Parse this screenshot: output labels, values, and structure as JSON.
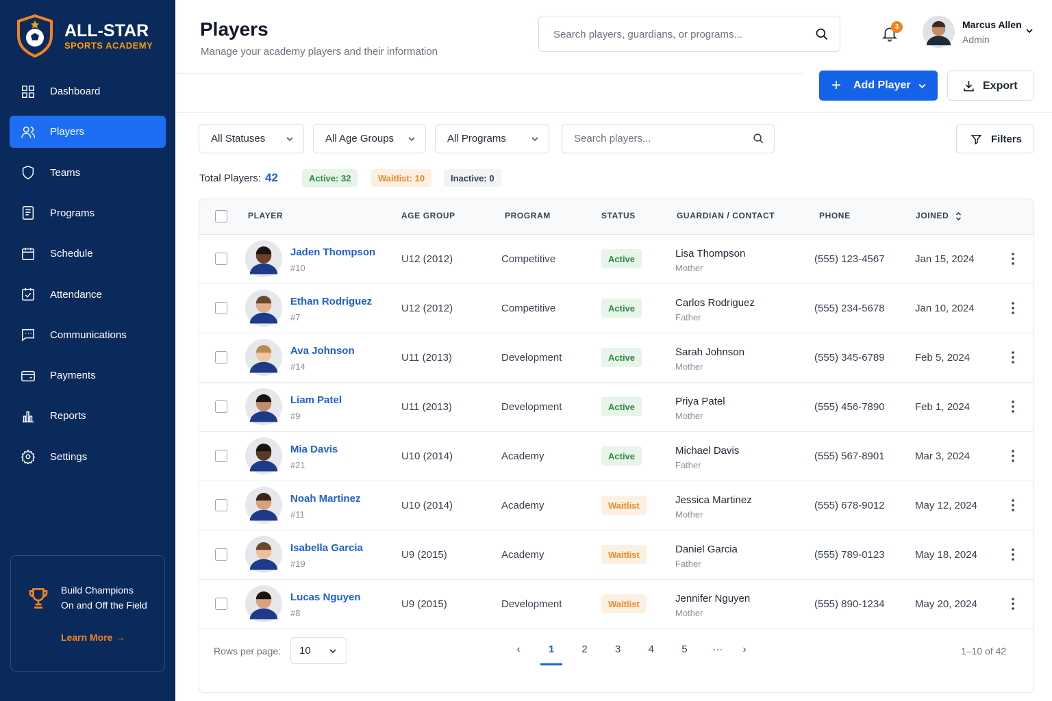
{
  "brand": {
    "name": "ALL-STAR",
    "tagline": "SPORTS ACADEMY"
  },
  "nav": [
    "Dashboard",
    "Players",
    "Teams",
    "Programs",
    "Schedule",
    "Attendance",
    "Communications",
    "Payments",
    "Reports",
    "Settings"
  ],
  "promo": {
    "line1": "Build Champions",
    "line2": "On and Off the Field",
    "link": "Learn More"
  },
  "header": {
    "title": "Players",
    "subtitle": "Manage your academy players and their information",
    "search_placeholder": "Search players, guardians, or programs...",
    "notifications": "3",
    "user_name": "Marcus Allen",
    "user_role": "Admin"
  },
  "actions": {
    "add": "Add Player",
    "export": "Export"
  },
  "filters": {
    "status": "All Statuses",
    "age": "All Age Groups",
    "program": "All Programs",
    "search_placeholder": "Search players...",
    "more": "Filters"
  },
  "summary": {
    "total_label": "Total Players:",
    "total": "42",
    "active": "Active: 32",
    "waitlist": "Waitlist: 10",
    "inactive": "Inactive: 0"
  },
  "table": {
    "columns": [
      "PLAYER",
      "AGE GROUP",
      "PROGRAM",
      "STATUS",
      "GUARDIAN / CONTACT",
      "PHONE",
      "JOINED"
    ],
    "rows": [
      {
        "name": "Jaden Thompson",
        "number": "#10",
        "age_group": "U12 (2012)",
        "program": "Competitive",
        "status": "Active",
        "guardian": "Lisa Thompson",
        "relation": "Mother",
        "phone": "(555) 123-4567",
        "joined": "Jan 15, 2024"
      },
      {
        "name": "Ethan Rodriguez",
        "number": "#7",
        "age_group": "U12 (2012)",
        "program": "Competitive",
        "status": "Active",
        "guardian": "Carlos Rodriguez",
        "relation": "Father",
        "phone": "(555) 234-5678",
        "joined": "Jan 10, 2024"
      },
      {
        "name": "Ava Johnson",
        "number": "#14",
        "age_group": "U11 (2013)",
        "program": "Development",
        "status": "Active",
        "guardian": "Sarah Johnson",
        "relation": "Mother",
        "phone": "(555) 345-6789",
        "joined": "Feb 5, 2024"
      },
      {
        "name": "Liam Patel",
        "number": "#9",
        "age_group": "U11 (2013)",
        "program": "Development",
        "status": "Active",
        "guardian": "Priya Patel",
        "relation": "Mother",
        "phone": "(555) 456-7890",
        "joined": "Feb 1, 2024"
      },
      {
        "name": "Mia Davis",
        "number": "#21",
        "age_group": "U10 (2014)",
        "program": "Academy",
        "status": "Active",
        "guardian": "Michael Davis",
        "relation": "Father",
        "phone": "(555) 567-8901",
        "joined": "Mar 3, 2024"
      },
      {
        "name": "Noah Martinez",
        "number": "#11",
        "age_group": "U10 (2014)",
        "program": "Academy",
        "status": "Waitlist",
        "guardian": "Jessica Martinez",
        "relation": "Mother",
        "phone": "(555) 678-9012",
        "joined": "May 12, 2024"
      },
      {
        "name": "Isabella Garcia",
        "number": "#19",
        "age_group": "U9 (2015)",
        "program": "Academy",
        "status": "Waitlist",
        "guardian": "Daniel Garcia",
        "relation": "Father",
        "phone": "(555) 789-0123",
        "joined": "May 18, 2024"
      },
      {
        "name": "Lucas Nguyen",
        "number": "#8",
        "age_group": "U9 (2015)",
        "program": "Development",
        "status": "Waitlist",
        "guardian": "Jennifer Nguyen",
        "relation": "Mother",
        "phone": "(555) 890-1234",
        "joined": "May 20, 2024"
      }
    ]
  },
  "pagination": {
    "rows_label": "Rows per page:",
    "rows_value": "10",
    "pages": [
      "1",
      "2",
      "3",
      "4",
      "5",
      "···"
    ],
    "range": "1–10 of 42"
  }
}
